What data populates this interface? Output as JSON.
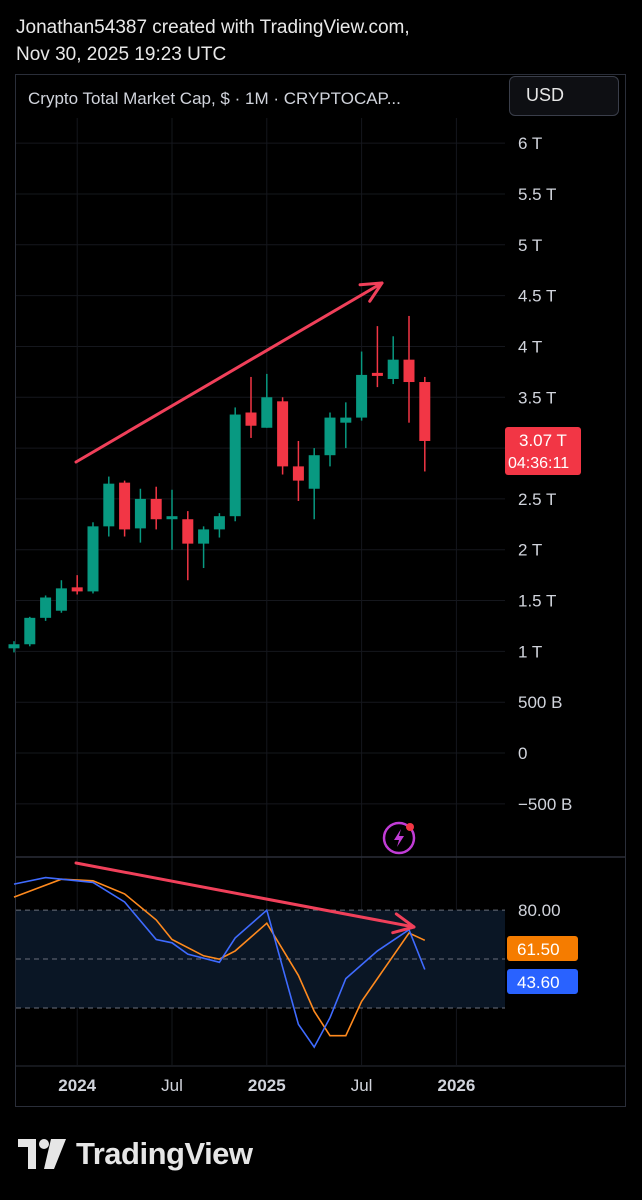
{
  "header": {
    "line1": "Jonathan54387 created with TradingView.com,",
    "line2": "Nov 30, 2025 19:23 UTC"
  },
  "legend": {
    "title": "Crypto Total Market Cap, $ · 1M · CRYPTOCAP..."
  },
  "currency_button": {
    "label": "USD"
  },
  "price_badge": {
    "value": "3.07 T",
    "countdown": "04:36:11",
    "color": "#f23645"
  },
  "osc_badges": [
    {
      "value": "61.50",
      "color": "#f57c00"
    },
    {
      "value": "43.60",
      "color": "#2962ff"
    }
  ],
  "footer": {
    "brand": "TradingView"
  },
  "colors": {
    "up": "#089981",
    "down": "#f23645",
    "annotation": "#f0405a",
    "osc_fast": "#3f6bff",
    "osc_slow": "#ff8a1e"
  },
  "chart_data": {
    "type": "candlestick",
    "price_axis": {
      "unit": "T",
      "range": [
        -0.6,
        6.1
      ],
      "ticks": [
        {
          "value": 6,
          "label": "6 T"
        },
        {
          "value": 5.5,
          "label": "5.5 T"
        },
        {
          "value": 5,
          "label": "5 T"
        },
        {
          "value": 4.5,
          "label": "4.5 T"
        },
        {
          "value": 4,
          "label": "4 T"
        },
        {
          "value": 3.5,
          "label": "3.5 T"
        },
        {
          "value": 3,
          "label": "3 T"
        },
        {
          "value": 2.5,
          "label": "2.5 T"
        },
        {
          "value": 2,
          "label": "2 T"
        },
        {
          "value": 1.5,
          "label": "1.5 T"
        },
        {
          "value": 1,
          "label": "1 T"
        },
        {
          "value": 0.5,
          "label": "500 B"
        },
        {
          "value": 0,
          "label": "0"
        },
        {
          "value": -0.5,
          "label": "−500 B"
        }
      ]
    },
    "time_axis": {
      "first_month": "2023-09",
      "labels": [
        {
          "label": "2024",
          "month": "2024-01",
          "bold": true
        },
        {
          "label": "Jul",
          "month": "2024-07",
          "bold": false
        },
        {
          "label": "2025",
          "month": "2025-01",
          "bold": true
        },
        {
          "label": "Jul",
          "month": "2025-07",
          "bold": false
        },
        {
          "label": "2026",
          "month": "2026-01",
          "bold": true
        }
      ]
    },
    "candles": [
      {
        "month": "2023-09",
        "o": 1.03,
        "h": 1.1,
        "l": 0.99,
        "c": 1.07
      },
      {
        "month": "2023-10",
        "o": 1.07,
        "h": 1.34,
        "l": 1.05,
        "c": 1.33
      },
      {
        "month": "2023-11",
        "o": 1.33,
        "h": 1.55,
        "l": 1.3,
        "c": 1.53
      },
      {
        "month": "2023-12",
        "o": 1.4,
        "h": 1.7,
        "l": 1.38,
        "c": 1.62
      },
      {
        "month": "2024-01",
        "o": 1.63,
        "h": 1.75,
        "l": 1.56,
        "c": 1.59
      },
      {
        "month": "2024-02",
        "o": 1.59,
        "h": 2.27,
        "l": 1.57,
        "c": 2.23
      },
      {
        "month": "2024-03",
        "o": 2.23,
        "h": 2.72,
        "l": 2.13,
        "c": 2.65
      },
      {
        "month": "2024-04",
        "o": 2.66,
        "h": 2.68,
        "l": 2.13,
        "c": 2.2
      },
      {
        "month": "2024-05",
        "o": 2.21,
        "h": 2.6,
        "l": 2.07,
        "c": 2.5
      },
      {
        "month": "2024-06",
        "o": 2.5,
        "h": 2.62,
        "l": 2.2,
        "c": 2.3
      },
      {
        "month": "2024-07",
        "o": 2.3,
        "h": 2.59,
        "l": 2.0,
        "c": 2.33
      },
      {
        "month": "2024-08",
        "o": 2.3,
        "h": 2.38,
        "l": 1.7,
        "c": 2.06
      },
      {
        "month": "2024-09",
        "o": 2.06,
        "h": 2.23,
        "l": 1.82,
        "c": 2.2
      },
      {
        "month": "2024-10",
        "o": 2.2,
        "h": 2.36,
        "l": 2.12,
        "c": 2.33
      },
      {
        "month": "2024-11",
        "o": 2.33,
        "h": 3.4,
        "l": 2.28,
        "c": 3.33
      },
      {
        "month": "2024-12",
        "o": 3.35,
        "h": 3.7,
        "l": 3.1,
        "c": 3.22
      },
      {
        "month": "2025-01",
        "o": 3.2,
        "h": 3.73,
        "l": 3.2,
        "c": 3.5
      },
      {
        "month": "2025-02",
        "o": 3.46,
        "h": 3.5,
        "l": 2.74,
        "c": 2.82
      },
      {
        "month": "2025-03",
        "o": 2.82,
        "h": 3.07,
        "l": 2.48,
        "c": 2.68
      },
      {
        "month": "2025-04",
        "o": 2.6,
        "h": 3.0,
        "l": 2.3,
        "c": 2.93
      },
      {
        "month": "2025-05",
        "o": 2.93,
        "h": 3.35,
        "l": 2.82,
        "c": 3.3
      },
      {
        "month": "2025-06",
        "o": 3.25,
        "h": 3.45,
        "l": 3.0,
        "c": 3.3
      },
      {
        "month": "2025-07",
        "o": 3.3,
        "h": 3.95,
        "l": 3.27,
        "c": 3.72
      },
      {
        "month": "2025-08",
        "o": 3.74,
        "h": 4.2,
        "l": 3.6,
        "c": 3.71
      },
      {
        "month": "2025-09",
        "o": 3.68,
        "h": 4.1,
        "l": 3.63,
        "c": 3.87
      },
      {
        "month": "2025-10",
        "o": 3.87,
        "h": 4.3,
        "l": 3.25,
        "c": 3.65
      },
      {
        "month": "2025-11",
        "o": 3.65,
        "h": 3.7,
        "l": 2.77,
        "c": 3.07
      }
    ],
    "oscillator": {
      "range": [
        -15,
        112
      ],
      "levels": [
        80,
        50,
        20
      ],
      "level_labels": [
        {
          "value": 80,
          "label": "80.00"
        }
      ],
      "fast": {
        "color": "#3f6bff",
        "points": [
          [
            "2023-09",
            96
          ],
          [
            "2023-11",
            100
          ],
          [
            "2024-02",
            97
          ],
          [
            "2024-04",
            85
          ],
          [
            "2024-06",
            62
          ],
          [
            "2024-07",
            60
          ],
          [
            "2024-08",
            53
          ],
          [
            "2024-10",
            48
          ],
          [
            "2024-11",
            63
          ],
          [
            "2025-01",
            80
          ],
          [
            "2025-02",
            45
          ],
          [
            "2025-03",
            10
          ],
          [
            "2025-04",
            -4
          ],
          [
            "2025-05",
            14
          ],
          [
            "2025-06",
            38
          ],
          [
            "2025-08",
            55
          ],
          [
            "2025-10",
            68
          ],
          [
            "2025-11",
            43.6
          ]
        ]
      },
      "slow": {
        "color": "#ff8a1e",
        "points": [
          [
            "2023-09",
            88
          ],
          [
            "2023-12",
            99
          ],
          [
            "2024-02",
            98
          ],
          [
            "2024-04",
            90
          ],
          [
            "2024-06",
            74
          ],
          [
            "2024-07",
            62
          ],
          [
            "2024-09",
            52
          ],
          [
            "2024-10",
            50
          ],
          [
            "2024-11",
            55
          ],
          [
            "2025-01",
            72
          ],
          [
            "2025-03",
            40
          ],
          [
            "2025-04",
            18
          ],
          [
            "2025-05",
            3
          ],
          [
            "2025-06",
            3
          ],
          [
            "2025-07",
            24
          ],
          [
            "2025-09",
            52
          ],
          [
            "2025-10",
            66
          ],
          [
            "2025-11",
            61.5
          ]
        ]
      }
    }
  }
}
